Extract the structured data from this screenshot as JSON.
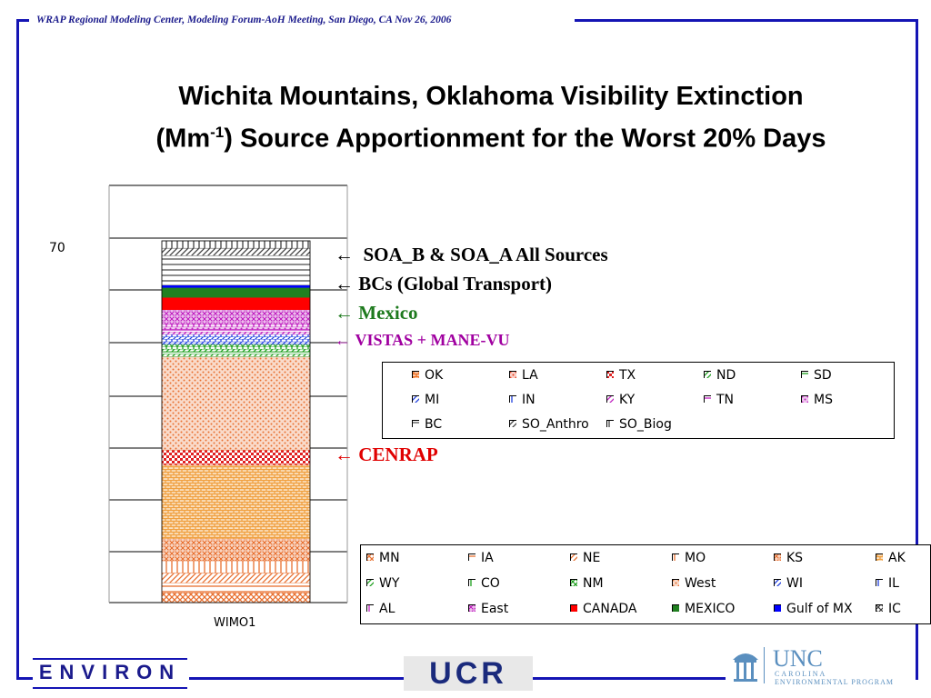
{
  "header": "WRAP Regional Modeling Center,  Modeling Forum-AoH Meeting, San Diego, CA  Nov 26, 2006",
  "title_line1": "Wichita Mountains, Oklahoma Visibility Extinction",
  "title_line2_pre": "(Mm",
  "title_line2_sup": "-1",
  "title_line2_post": ") Source Apportionment for the Worst 20% Days",
  "annotations": [
    {
      "text": "SOA_B & SOA_A All Sources",
      "color": "#000000",
      "arrow": "←"
    },
    {
      "text": "BCs (Global Transport)",
      "color": "#000000",
      "arrow": "←"
    },
    {
      "text": "Mexico",
      "color": "#1e7a1e",
      "arrow": "←"
    },
    {
      "text": "VISTAS + MANE-VU",
      "color": "#a000a0",
      "arrow": "←"
    },
    {
      "text": "CENRAP",
      "color": "#e00000",
      "arrow": "←"
    }
  ],
  "logos": {
    "environ": "ENVIRON",
    "ucr": "UCR",
    "unc": "UNC",
    "unc_sub1": "CAROLINA",
    "unc_sub2": "ENVIRONMENTAL PROGRAM"
  },
  "chart_data": {
    "type": "bar",
    "stacked": true,
    "categories": [
      "WIMO1"
    ],
    "y_tick_labels_shown": [
      "70"
    ],
    "grid": true,
    "series": [
      {
        "name": "MN",
        "color": "#e87030",
        "pattern": "cross",
        "values": [
          2.0
        ]
      },
      {
        "name": "IA",
        "color": "#e87030",
        "pattern": "horiz",
        "values": [
          2.0
        ]
      },
      {
        "name": "NE",
        "color": "#e87030",
        "pattern": "diag",
        "values": [
          2.0
        ]
      },
      {
        "name": "MO",
        "color": "#e87030",
        "pattern": "vert",
        "values": [
          2.5
        ]
      },
      {
        "name": "KS",
        "color": "#e87030",
        "pattern": "xmark",
        "values": [
          4.5
        ]
      },
      {
        "name": "AK",
        "color": "#f0a040",
        "pattern": "brick",
        "values": [
          15.0
        ]
      },
      {
        "name": "OK",
        "color": "#f07020",
        "pattern": "brick",
        "values": [
          0
        ]
      },
      {
        "name": "LA",
        "color": "#e84020",
        "pattern": "dots",
        "values": [
          0
        ]
      },
      {
        "name": "TX",
        "color": "#e02020",
        "pattern": "check",
        "values": [
          3.0
        ]
      },
      {
        "name": "West",
        "color": "#e87030",
        "pattern": "dots",
        "values": [
          19.0
        ]
      },
      {
        "name": "ND",
        "color": "#20a020",
        "pattern": "diag",
        "values": [
          0.5
        ]
      },
      {
        "name": "SD",
        "color": "#20a020",
        "pattern": "horiz",
        "values": [
          0.5
        ]
      },
      {
        "name": "WY",
        "color": "#20a020",
        "pattern": "diag",
        "values": [
          0.5
        ]
      },
      {
        "name": "CO",
        "color": "#20a020",
        "pattern": "vert",
        "values": [
          0.5
        ]
      },
      {
        "name": "NM",
        "color": "#20a020",
        "pattern": "cross",
        "values": [
          0.5
        ]
      },
      {
        "name": "MI",
        "color": "#2040e0",
        "pattern": "diag",
        "values": [
          0.5
        ]
      },
      {
        "name": "IN",
        "color": "#2040e0",
        "pattern": "vert",
        "values": [
          0.5
        ]
      },
      {
        "name": "WI",
        "color": "#2040e0",
        "pattern": "diag",
        "values": [
          0.5
        ]
      },
      {
        "name": "IL",
        "color": "#2040e0",
        "pattern": "vert",
        "values": [
          0.5
        ]
      },
      {
        "name": "KY",
        "color": "#c020c0",
        "pattern": "diag",
        "values": [
          0.5
        ]
      },
      {
        "name": "TN",
        "color": "#c020c0",
        "pattern": "horiz",
        "values": [
          0.5
        ]
      },
      {
        "name": "MS",
        "color": "#c020c0",
        "pattern": "dots",
        "values": [
          0.5
        ]
      },
      {
        "name": "AL",
        "color": "#c020c0",
        "pattern": "vert",
        "values": [
          0.5
        ]
      },
      {
        "name": "East",
        "color": "#c020c0",
        "pattern": "xmark",
        "values": [
          3.0
        ]
      },
      {
        "name": "CANADA",
        "color": "#ff0000",
        "pattern": "solid",
        "values": [
          2.5
        ]
      },
      {
        "name": "MEXICO",
        "color": "#208020",
        "pattern": "solid",
        "values": [
          2.0
        ]
      },
      {
        "name": "Gulf of MX",
        "color": "#0000ff",
        "pattern": "solid",
        "values": [
          0.5
        ]
      },
      {
        "name": "IC",
        "color": "#404040",
        "pattern": "cross",
        "values": [
          0
        ]
      },
      {
        "name": "BC",
        "color": "#505050",
        "pattern": "horiz",
        "values": [
          6.0
        ]
      },
      {
        "name": "SO_Anthro",
        "color": "#404040",
        "pattern": "diag",
        "values": [
          1.5
        ]
      },
      {
        "name": "SO_Biog",
        "color": "#404040",
        "pattern": "vert",
        "values": [
          1.5
        ]
      }
    ]
  },
  "legend_top": [
    "OK",
    "LA",
    "TX",
    "ND",
    "SD",
    "MI",
    "IN",
    "KY",
    "TN",
    "MS",
    "BC",
    "SO_Anthro",
    "SO_Biog"
  ],
  "legend_bottom": [
    "MN",
    "IA",
    "NE",
    "MO",
    "KS",
    "AK",
    "WY",
    "CO",
    "NM",
    "West",
    "WI",
    "IL",
    "AL",
    "East",
    "CANADA",
    "MEXICO",
    "Gulf of MX",
    "IC"
  ]
}
